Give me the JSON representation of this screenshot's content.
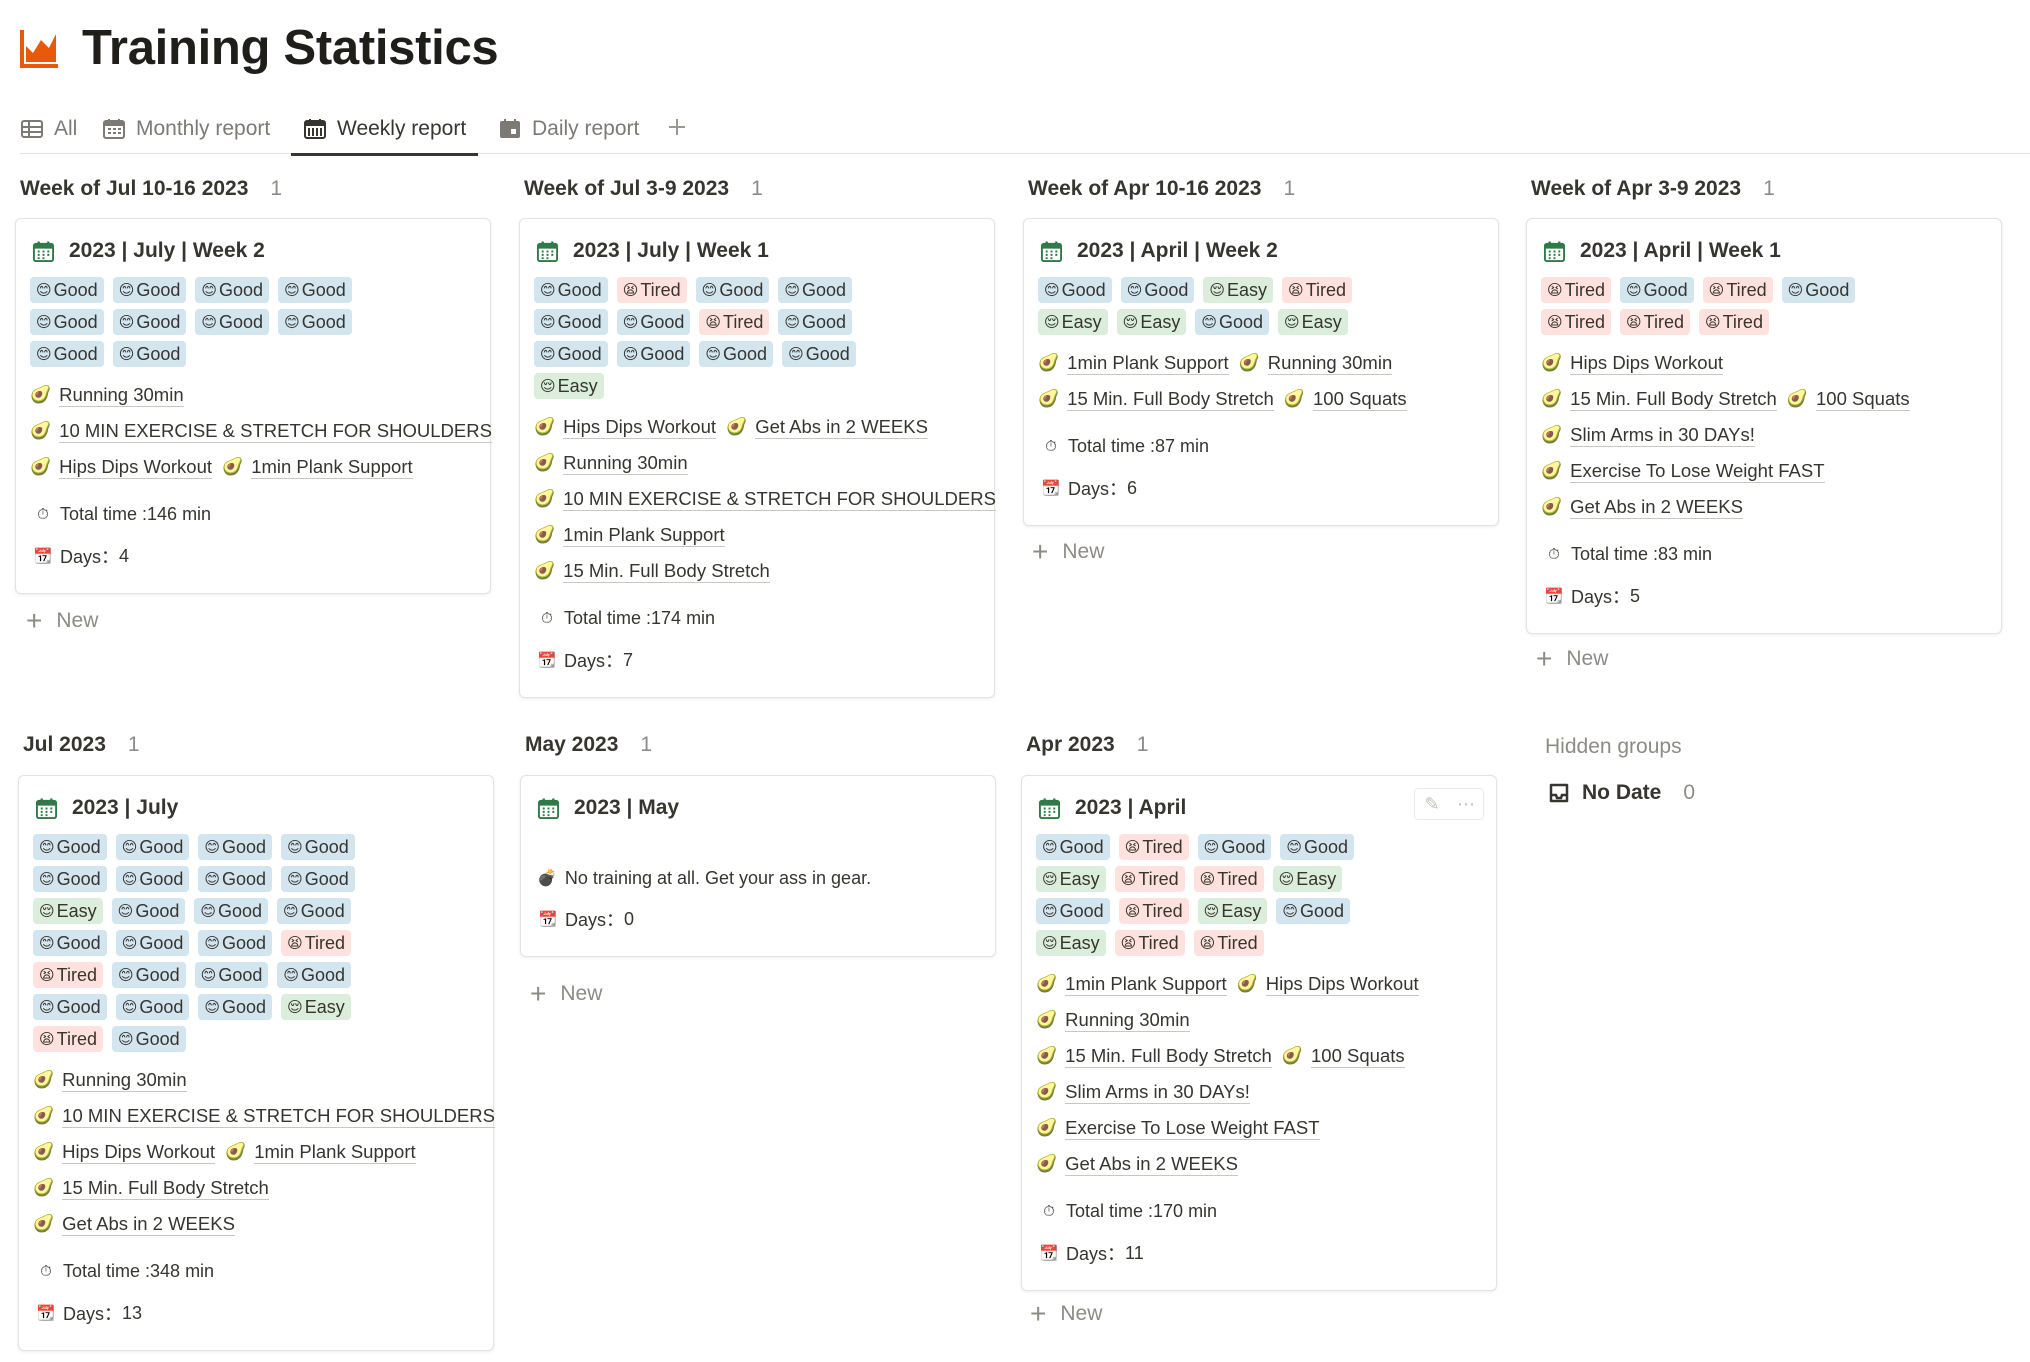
{
  "page": {
    "title": "Training Statistics",
    "title_icon": "area-chart-icon",
    "accent": "#e8590c"
  },
  "tabs": [
    {
      "label": "All",
      "icon": "table-icon"
    },
    {
      "label": "Monthly report",
      "icon": "calendar-grid-icon"
    },
    {
      "label": "Weekly report",
      "icon": "calendar-week-icon",
      "active": true
    },
    {
      "label": "Daily report",
      "icon": "calendar-day-icon"
    }
  ],
  "new_label": "New",
  "total_time_prefix": "Total time : ",
  "days_prefix": "Days：",
  "tag_colors": {
    "Good": "#d3e5ef",
    "Tired": "#ffe2dd",
    "Easy": "#dbeddb"
  },
  "groups": [
    {
      "title": "Week of Jul 10-16 2023",
      "count": "1",
      "card": {
        "title": "2023 | July | Week 2",
        "tags": [
          "Good",
          "Good",
          "Good",
          "Good",
          "Good",
          "Good",
          "Good",
          "Good",
          "Good",
          "Good"
        ],
        "relations": [
          [
            "Running 30min"
          ],
          [
            "10 MIN EXERCISE & STRETCH FOR SHOULDERS"
          ],
          [
            "Hips Dips Workout",
            "1min Plank Support"
          ]
        ],
        "total_time": "146 min",
        "days": "4"
      }
    },
    {
      "title": "Week of Jul 3-9 2023",
      "count": "1",
      "card": {
        "title": "2023 | July | Week 1",
        "tags": [
          "Good",
          "Tired",
          "Good",
          "Good",
          "Good",
          "Good",
          "Tired",
          "Good",
          "Good",
          "Good",
          "Good",
          "Good",
          "Easy"
        ],
        "relations": [
          [
            "Hips Dips Workout",
            "Get Abs in 2 WEEKS"
          ],
          [
            "Running 30min"
          ],
          [
            "10 MIN EXERCISE & STRETCH FOR SHOULDERS"
          ],
          [
            "1min Plank Support"
          ],
          [
            "15 Min. Full Body Stretch"
          ]
        ],
        "total_time": "174 min",
        "days": "7"
      }
    },
    {
      "title": "Week of Apr 10-16 2023",
      "count": "1",
      "card": {
        "title": "2023 | April | Week 2",
        "tags": [
          "Good",
          "Good",
          "Easy",
          "Tired",
          "Easy",
          "Easy",
          "Good",
          "Easy"
        ],
        "relations": [
          [
            "1min Plank Support",
            "Running 30min"
          ],
          [
            "15 Min. Full Body Stretch",
            "100 Squats"
          ]
        ],
        "total_time": "87 min",
        "days": "6"
      }
    },
    {
      "title": "Week of Apr 3-9 2023",
      "count": "1",
      "card": {
        "title": "2023 | April | Week 1",
        "tags": [
          "Tired",
          "Good",
          "Tired",
          "Good",
          "Tired",
          "Tired",
          "Tired"
        ],
        "relations": [
          [
            "Hips Dips Workout"
          ],
          [
            "15 Min. Full Body Stretch",
            "100 Squats"
          ],
          [
            "Slim Arms in 30 DAYs!"
          ],
          [
            "Exercise To Lose Weight FAST"
          ],
          [
            "Get Abs in 2 WEEKS"
          ]
        ],
        "total_time": "83 min",
        "days": "5"
      }
    },
    {
      "title": "Jul 2023",
      "count": "1",
      "card": {
        "title": "2023 | July",
        "tags": [
          "Good",
          "Good",
          "Good",
          "Good",
          "Good",
          "Good",
          "Good",
          "Good",
          "Easy",
          "Good",
          "Good",
          "Good",
          "Good",
          "Good",
          "Good",
          "Tired",
          "Tired",
          "Good",
          "Good",
          "Good",
          "Good",
          "Good",
          "Good",
          "Easy",
          "Tired",
          "Good"
        ],
        "relations": [
          [
            "Running 30min"
          ],
          [
            "10 MIN EXERCISE & STRETCH FOR SHOULDERS"
          ],
          [
            "Hips Dips Workout",
            "1min Plank Support"
          ],
          [
            "15 Min. Full Body Stretch"
          ],
          [
            "Get Abs in 2 WEEKS"
          ]
        ],
        "total_time": "348 min",
        "days": "13"
      }
    },
    {
      "title": "May 2023",
      "count": "1",
      "card": {
        "title": "2023 | May",
        "note": "No training at all. Get your ass in gear.",
        "days": "0"
      }
    },
    {
      "title": "Apr 2023",
      "count": "1",
      "card": {
        "title": "2023 | April",
        "tags": [
          "Good",
          "Tired",
          "Good",
          "Good",
          "Easy",
          "Tired",
          "Tired",
          "Easy",
          "Good",
          "Tired",
          "Easy",
          "Good",
          "Easy",
          "Tired",
          "Tired"
        ],
        "relations": [
          [
            "1min Plank Support",
            "Hips Dips Workout"
          ],
          [
            "Running 30min"
          ],
          [
            "15 Min. Full Body Stretch",
            "100 Squats"
          ],
          [
            "Slim Arms in 30 DAYs!"
          ],
          [
            "Exercise To Lose Weight FAST"
          ],
          [
            "Get Abs in 2 WEEKS"
          ]
        ],
        "total_time": "170 min",
        "days": "11"
      }
    }
  ],
  "hidden_groups": {
    "label": "Hidden groups",
    "items": [
      {
        "title": "No Date",
        "count": "0",
        "icon": "inbox-icon"
      }
    ]
  }
}
